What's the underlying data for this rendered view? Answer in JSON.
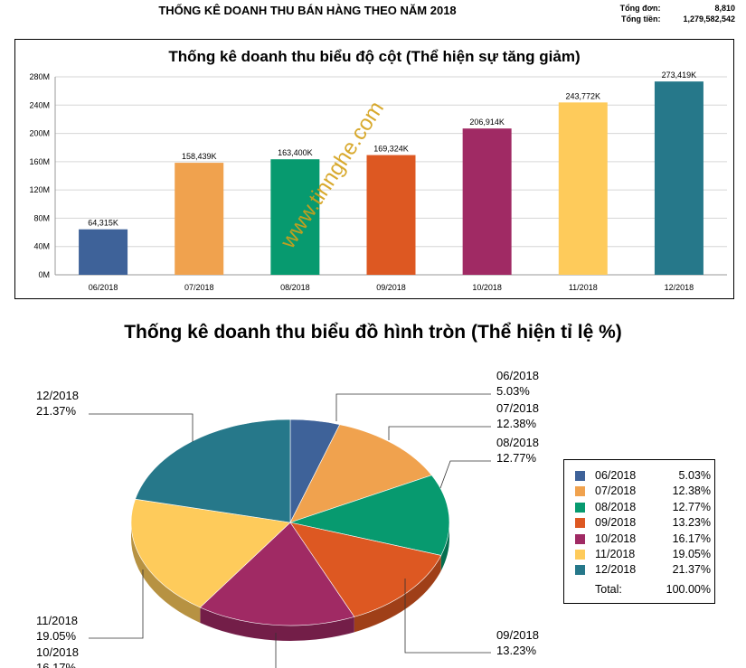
{
  "report": {
    "title": "THỐNG KÊ DOANH THU BÁN HÀNG THEO NĂM 2018",
    "summary": [
      {
        "label": "Tổng đơn:",
        "value": "8,810"
      },
      {
        "label": "Tổng tiền:",
        "value": "1,279,582,542"
      }
    ]
  },
  "watermark": "www.tinnghe.com",
  "chart_data": [
    {
      "type": "bar",
      "title": "Thống kê doanh thu biểu độ cột (Thể hiện sự tăng giảm)",
      "categories": [
        "06/2018",
        "07/2018",
        "08/2018",
        "09/2018",
        "10/2018",
        "11/2018",
        "12/2018"
      ],
      "values": [
        64315,
        158439,
        163400,
        169324,
        206914,
        243772,
        273419
      ],
      "value_unit": "K",
      "data_labels": [
        "64,315K",
        "158,439K",
        "163,400K",
        "169,324K",
        "206,914K",
        "243,772K",
        "273,419K"
      ],
      "colors": [
        "#3e6299",
        "#f0a24e",
        "#079a6f",
        "#dd5822",
        "#a02a64",
        "#fecb5b",
        "#26788a"
      ],
      "ylim": [
        0,
        280000
      ],
      "yticks": [
        0,
        40000,
        80000,
        120000,
        160000,
        200000,
        240000,
        280000
      ],
      "ytick_labels": [
        "0M",
        "40M",
        "80M",
        "120M",
        "160M",
        "200M",
        "240M",
        "280M"
      ],
      "grid": true,
      "xlabel": "",
      "ylabel": ""
    },
    {
      "type": "pie",
      "title": "Thống kê doanh thu biểu đồ hình tròn (Thể hiện tỉ lệ %)",
      "categories": [
        "06/2018",
        "07/2018",
        "08/2018",
        "09/2018",
        "10/2018",
        "11/2018",
        "12/2018"
      ],
      "values": [
        5.03,
        12.38,
        12.77,
        13.23,
        16.17,
        19.05,
        21.37
      ],
      "value_labels": [
        "5.03%",
        "12.38%",
        "12.77%",
        "13.23%",
        "16.17%",
        "19.05%",
        "21.37%"
      ],
      "colors": [
        "#3e6299",
        "#f0a24e",
        "#079a6f",
        "#dd5822",
        "#a02a64",
        "#fecb5b",
        "#26788a"
      ],
      "legend_placement": "right",
      "legend_total_label": "Total:",
      "legend_total_value": "100.00%"
    }
  ]
}
